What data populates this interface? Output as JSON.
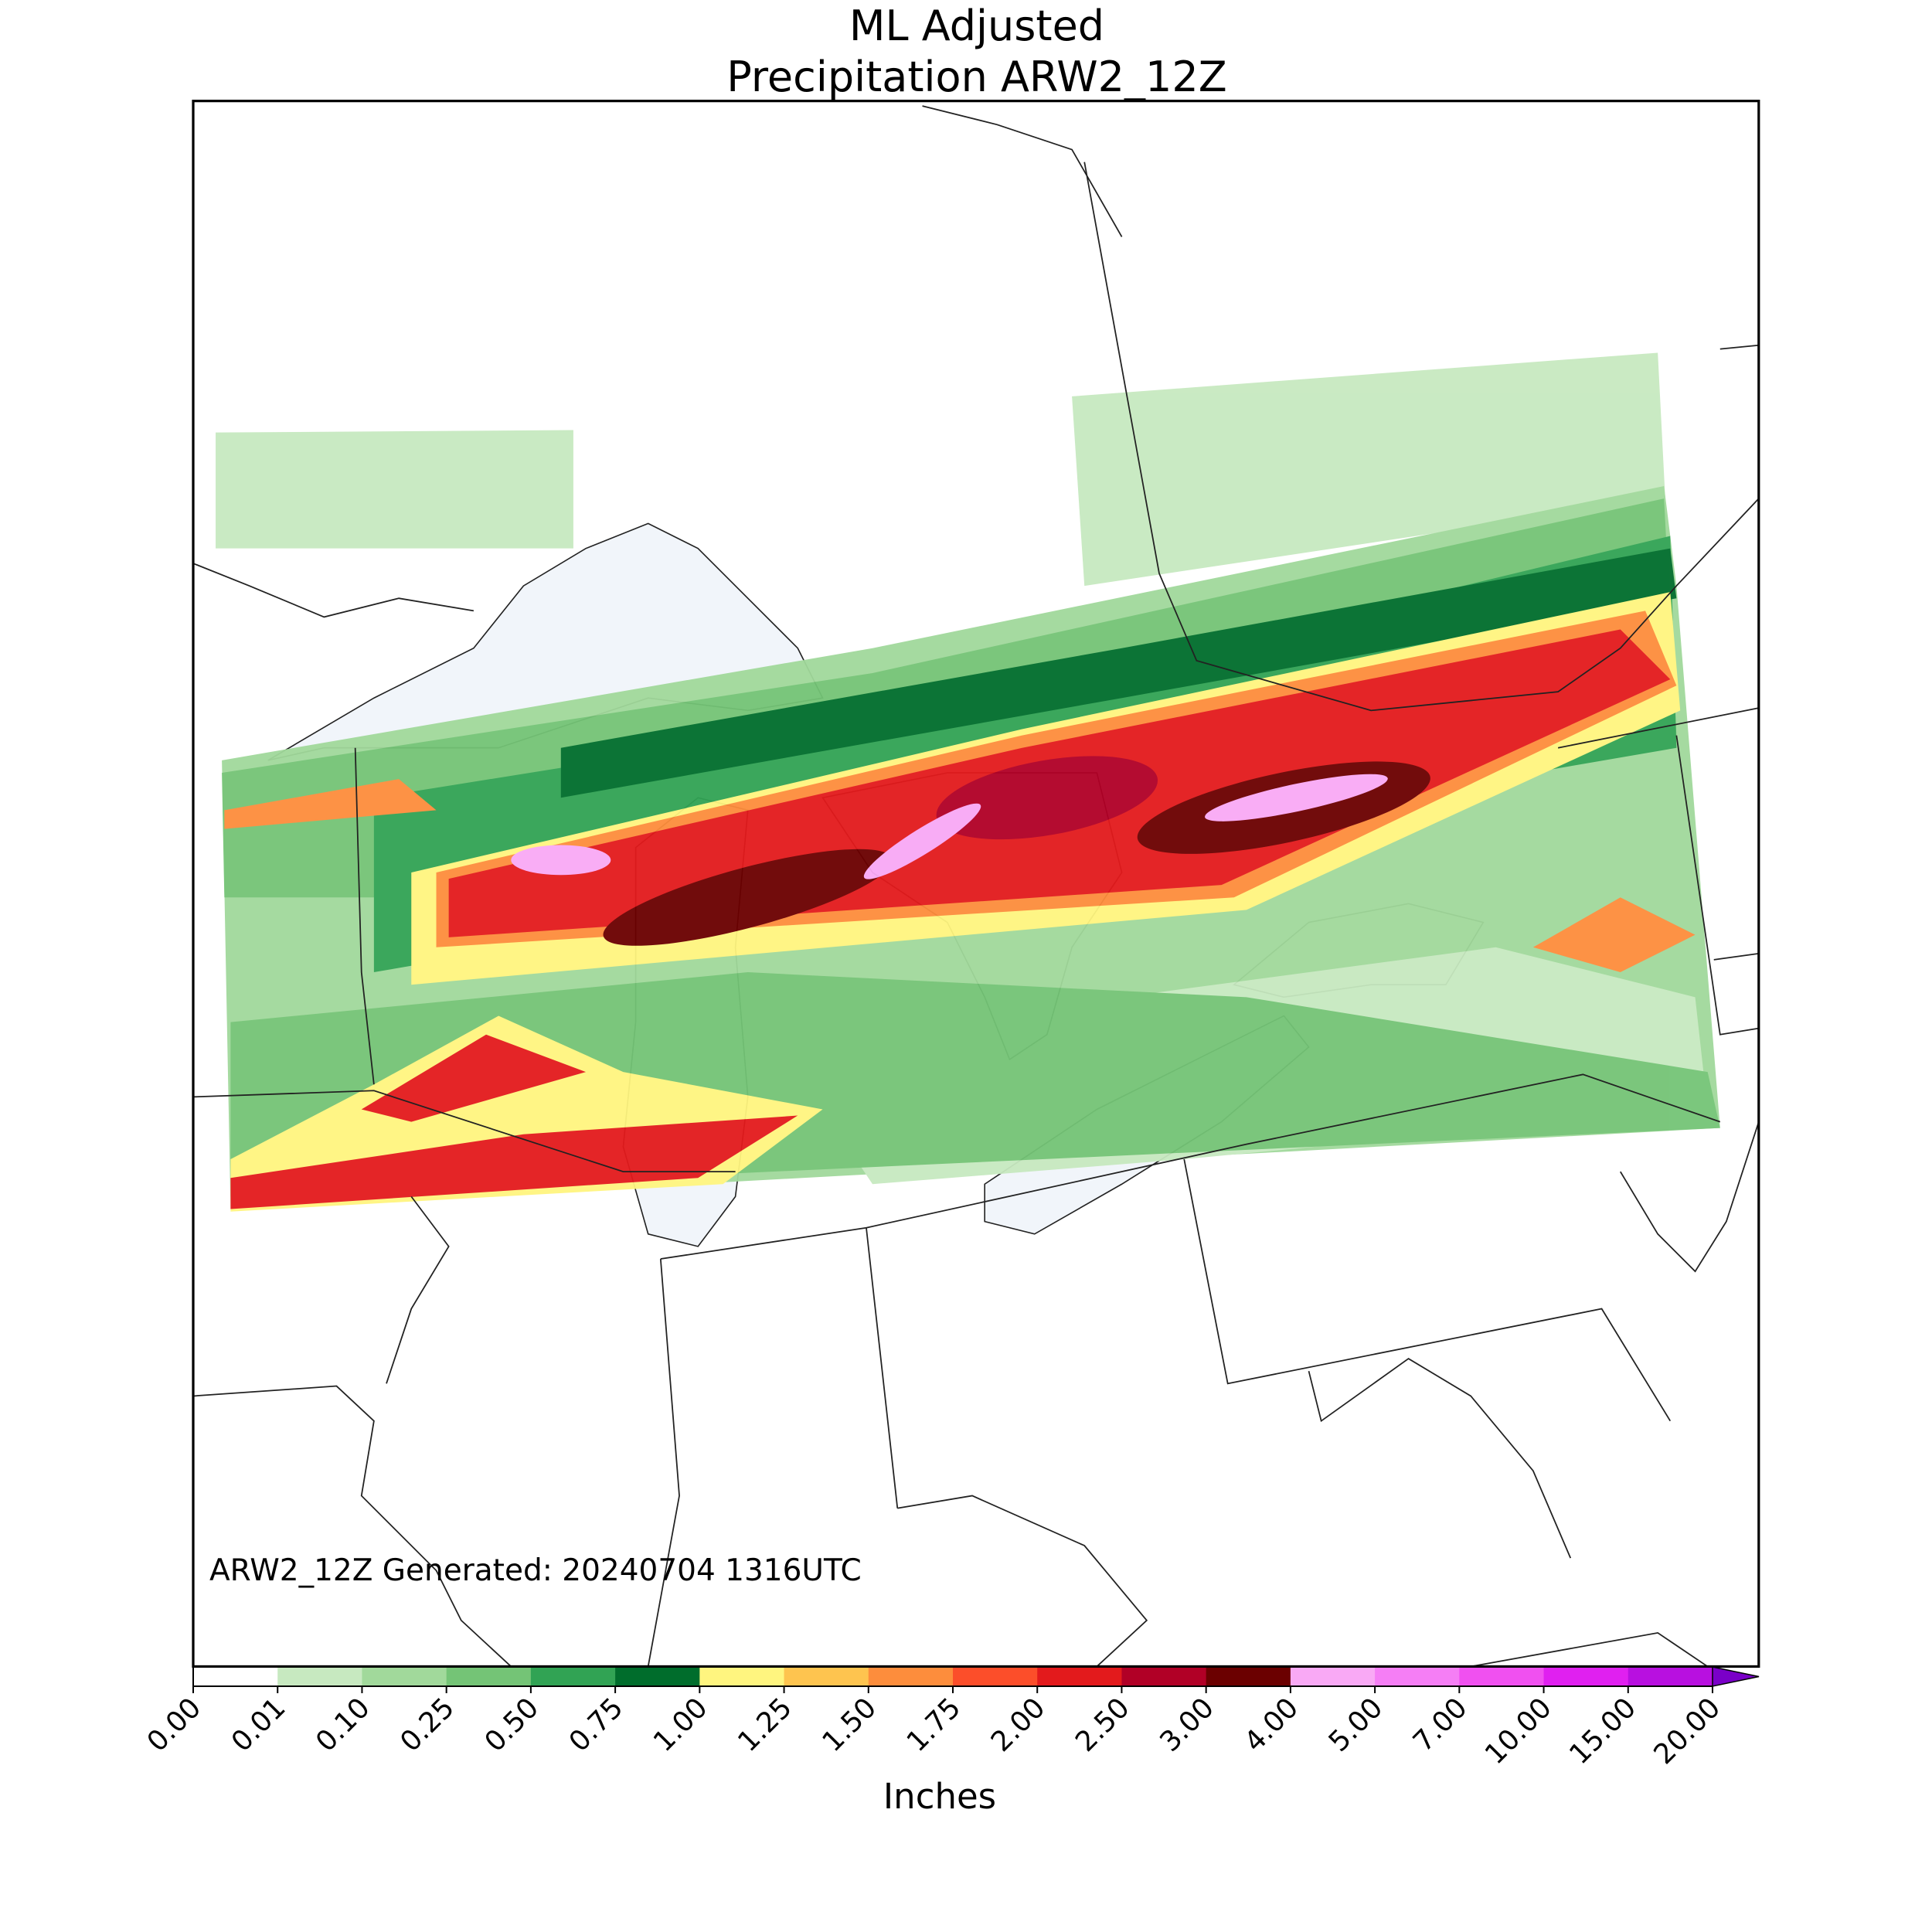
{
  "title": [
    "ML Adjusted",
    "Precipitation ARW2_12Z"
  ],
  "annotation": "ARW2_12Z Generated: 20240704 1316UTC",
  "colorbar": {
    "label": "Inches",
    "ticks": [
      {
        "value": 0,
        "label": "0.00"
      },
      {
        "value": 0.01,
        "label": "0.01"
      },
      {
        "value": 0.1,
        "label": "0.10"
      },
      {
        "value": 0.25,
        "label": "0.25"
      },
      {
        "value": 0.5,
        "label": "0.50"
      },
      {
        "value": 0.75,
        "label": "0.75"
      },
      {
        "value": 1,
        "label": "1.00"
      },
      {
        "value": 1.25,
        "label": "1.25"
      },
      {
        "value": 1.5,
        "label": "1.50"
      },
      {
        "value": 1.75,
        "label": "1.75"
      },
      {
        "value": 2,
        "label": "2.00"
      },
      {
        "value": 2.5,
        "label": "2.50"
      },
      {
        "value": 3,
        "label": "3.00"
      },
      {
        "value": 4,
        "label": "4.00"
      },
      {
        "value": 5,
        "label": "5.00"
      },
      {
        "value": 7,
        "label": "7.00"
      },
      {
        "value": 10,
        "label": "10.00"
      },
      {
        "value": 15,
        "label": "15.00"
      },
      {
        "value": 20,
        "label": "20.00"
      }
    ],
    "colors": [
      "#ffffff",
      "#c7e9c0",
      "#a1d99b",
      "#74c476",
      "#31a354",
      "#006d2c",
      "#fff57f",
      "#fec44f",
      "#fd8d3c",
      "#fc4e2a",
      "#e31a1c",
      "#b10026",
      "#6b0000",
      "#f9a9f5",
      "#f57ef5",
      "#f050f0",
      "#e020f0",
      "#b810e0"
    ],
    "extend_color": "#7a00c8"
  }
}
